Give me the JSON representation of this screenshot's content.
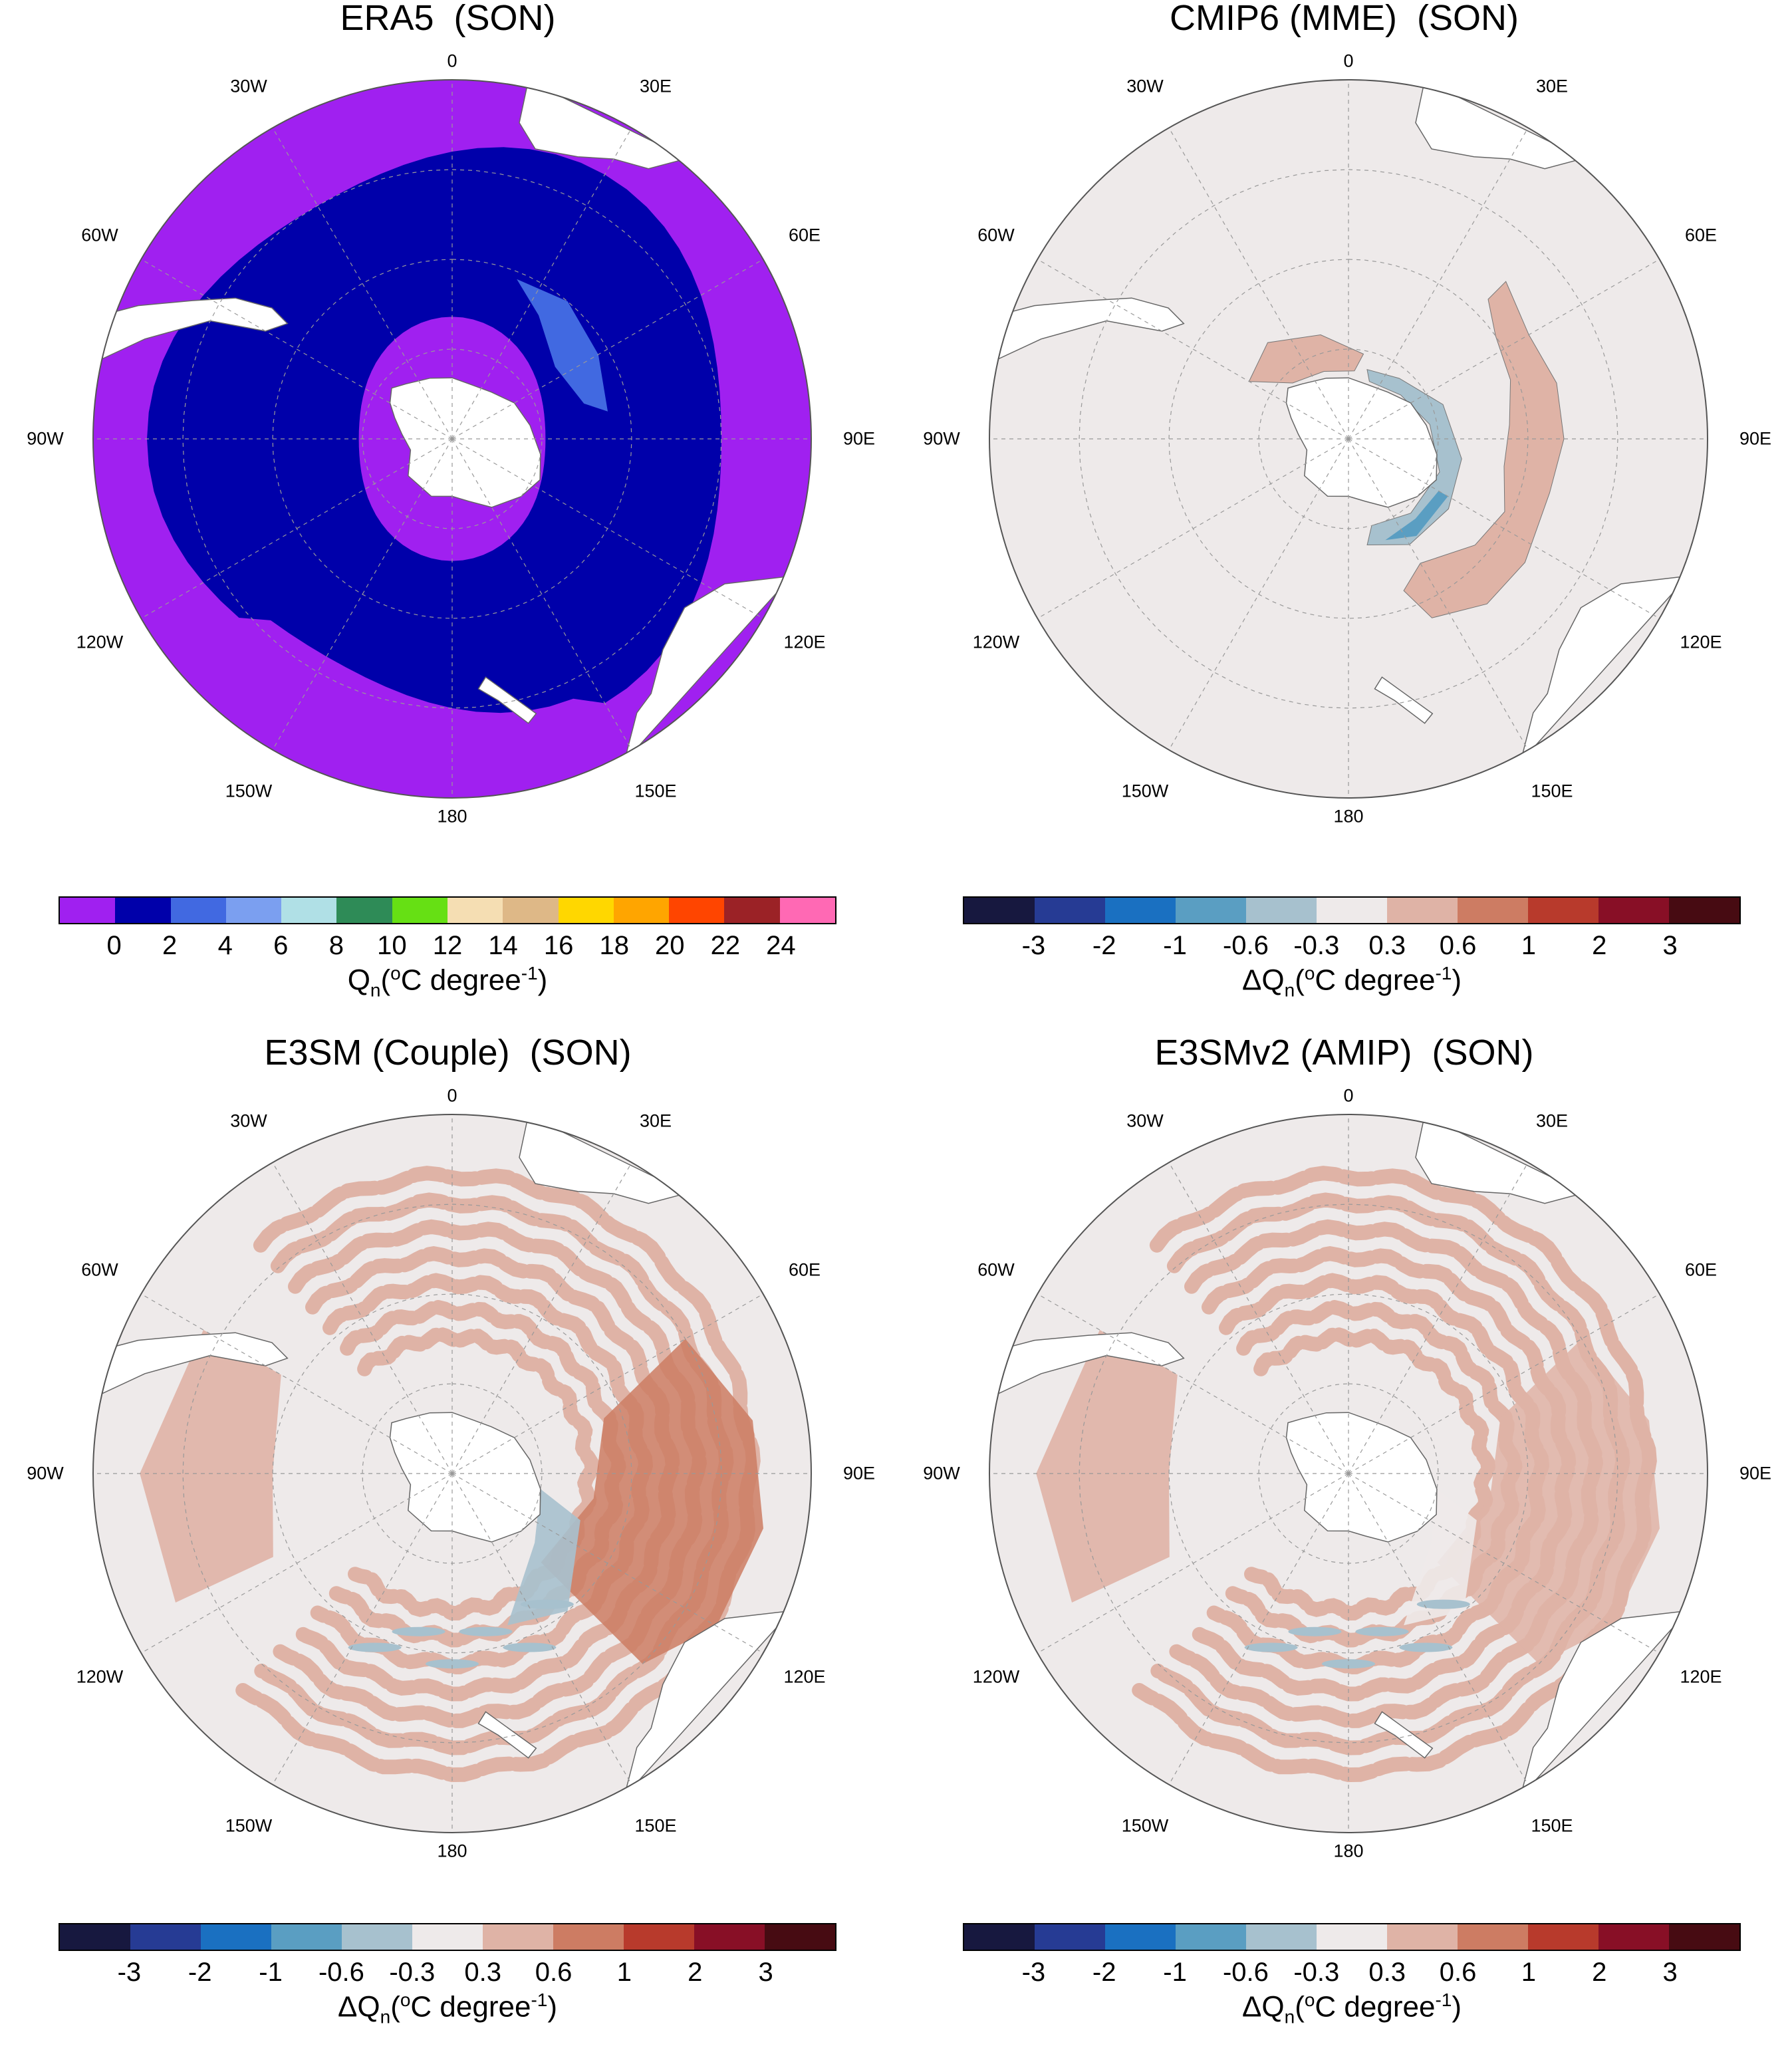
{
  "panels": [
    {
      "title": "ERA5  (SON)",
      "kind": "era5",
      "colorbar": {
        "colors": [
          "#a020f0",
          "#0000aa",
          "#4169e1",
          "#7b9ff0",
          "#b0e0e6",
          "#2e8b57",
          "#66e014",
          "#f5deb3",
          "#deb887",
          "#ffd700",
          "#ffa500",
          "#ff4500",
          "#9b2226",
          "#ff69b4"
        ],
        "ticks": [
          "0",
          "2",
          "4",
          "6",
          "8",
          "10",
          "12",
          "14",
          "16",
          "18",
          "20",
          "22",
          "24"
        ],
        "label_main": "Q",
        "label_sub": "n",
        "label_rest1": "(",
        "label_sup": "o",
        "label_rest2": "C degree",
        "label_sup2": "-1",
        "label_rest3": ")"
      }
    },
    {
      "title": "CMIP6 (MME)  (SON)",
      "kind": "cmip6",
      "colorbar": {
        "colors": [
          "#17183f",
          "#263b94",
          "#1a70c1",
          "#5a9ec2",
          "#a7c1ce",
          "#eeeaea",
          "#dfb3a6",
          "#cd7c63",
          "#b83a2c",
          "#880f26",
          "#470b12"
        ],
        "ticks": [
          "-3",
          "-2",
          "-1",
          "-0.6",
          "-0.3",
          "0.3",
          "0.6",
          "1",
          "2",
          "3"
        ],
        "label_main": "ΔQ",
        "label_sub": "n",
        "label_rest1": "(",
        "label_sup": "o",
        "label_rest2": "C degree",
        "label_sup2": "-1",
        "label_rest3": ")"
      }
    },
    {
      "title": "E3SM (Couple)  (SON)",
      "kind": "e3sm",
      "colorbar": {
        "colors": [
          "#17183f",
          "#263b94",
          "#1a70c1",
          "#5a9ec2",
          "#a7c1ce",
          "#eeeaea",
          "#dfb3a6",
          "#cd7c63",
          "#b83a2c",
          "#880f26",
          "#470b12"
        ],
        "ticks": [
          "-3",
          "-2",
          "-1",
          "-0.6",
          "-0.3",
          "0.3",
          "0.6",
          "1",
          "2",
          "3"
        ],
        "label_main": "ΔQ",
        "label_sub": "n",
        "label_rest1": "(",
        "label_sup": "o",
        "label_rest2": "C degree",
        "label_sup2": "-1",
        "label_rest3": ")"
      }
    },
    {
      "title": "E3SMv2 (AMIP)  (SON)",
      "kind": "amip",
      "colorbar": {
        "colors": [
          "#17183f",
          "#263b94",
          "#1a70c1",
          "#5a9ec2",
          "#a7c1ce",
          "#eeeaea",
          "#dfb3a6",
          "#cd7c63",
          "#b83a2c",
          "#880f26",
          "#470b12"
        ],
        "ticks": [
          "-3",
          "-2",
          "-1",
          "-0.6",
          "-0.3",
          "0.3",
          "0.6",
          "1",
          "2",
          "3"
        ],
        "label_main": "ΔQ",
        "label_sub": "n",
        "label_rest1": "(",
        "label_sup": "o",
        "label_rest2": "C degree",
        "label_sup2": "-1",
        "label_rest3": ")"
      }
    }
  ],
  "lon_labels": {
    "top": "0",
    "bottom": "180",
    "w30": "30W",
    "e30": "30E",
    "w60": "60W",
    "e60": "60E",
    "w90": "90W",
    "e90": "90E",
    "w120": "120W",
    "e120": "120E",
    "w150": "150W",
    "e150": "150E"
  },
  "colors": {
    "land": "#ffffff",
    "coast": "#666666",
    "grid": "#999999",
    "neutral": "#eeeaea",
    "era5_outer": "#a020f0",
    "era5_inner": "#0000aa",
    "era5_mid": "#4169e1"
  }
}
